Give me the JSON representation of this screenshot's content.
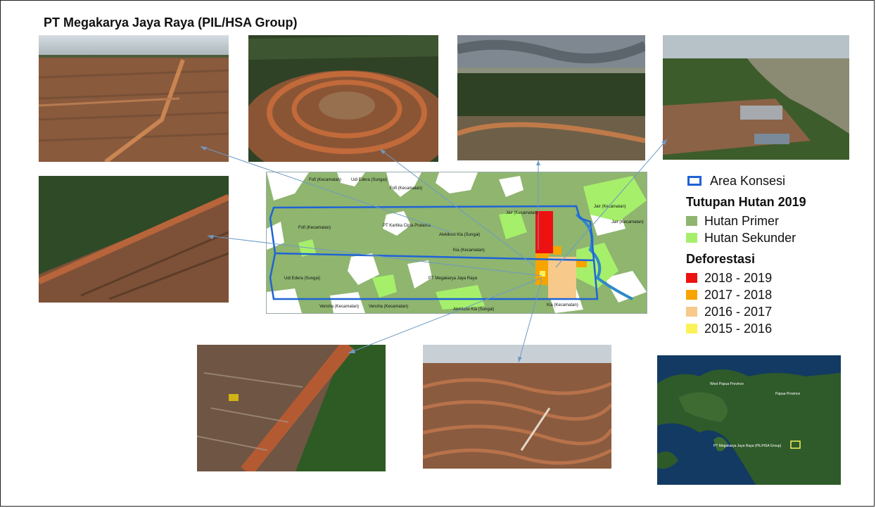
{
  "title": "PT Megakarya Jaya Raya (PIL/HSA Group)",
  "map": {
    "labels": [
      "Fofi (Kecamatan)",
      "Udi Edera (Sungai)",
      "Fofi (Kecamatan)",
      "Fofi (Kecamatan)",
      "PT Kartika Cipta Pratama",
      "Alekikosi Kia (Sungai)",
      "Kia (Kecamatan)",
      "Udi Edera (Sungai)",
      "PT Megakarya Jaya Raya",
      "Vensha (Kecamatan)",
      "Vensha (Kecamatan)",
      "Alekikosi Kia (Sungai)",
      "Kia (Kecamatan)",
      "Jair (Kecamatan)",
      "Jair (Kecamatan)",
      "Jair (Kecamatan)"
    ]
  },
  "legend": {
    "concession": "Area Konsesi",
    "forest_heading": "Tutupan Hutan 2019",
    "forest": [
      {
        "label": "Hutan Primer",
        "color": "#8fb56f"
      },
      {
        "label": "Hutan Sekunder",
        "color": "#a6ef6b"
      }
    ],
    "deforest_heading": "Deforestasi",
    "deforest": [
      {
        "label": "2018 - 2019",
        "color": "#ee1111"
      },
      {
        "label": "2017 - 2018",
        "color": "#f7a400"
      },
      {
        "label": "2016 - 2017",
        "color": "#f7c98a"
      },
      {
        "label": "2015 - 2016",
        "color": "#fbf25a"
      }
    ]
  },
  "inset": {
    "labels": [
      "West Papua Province",
      "Papua Province",
      "PT Megakarya Jaya Raya (PIL/HSA Group)"
    ]
  }
}
